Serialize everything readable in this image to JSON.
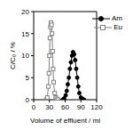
{
  "chart_data": {
    "type": "line",
    "x_label": "Volume of effluent / ml",
    "y_label": "C/C₀ / %",
    "xlim": [
      0,
      120
    ],
    "xticks": [
      0,
      30,
      60,
      90,
      120
    ],
    "ylim": [
      0,
      20
    ],
    "yticks": [
      0,
      5,
      10,
      15,
      20
    ],
    "grid": false,
    "legend": "top right",
    "series": [
      {
        "name": "Am",
        "color": "#000000",
        "marker": "circle",
        "x": [
          55,
          58,
          61,
          63,
          65,
          67,
          69,
          71,
          73,
          75,
          77,
          79,
          81,
          83,
          85,
          87,
          90,
          93,
          96
        ],
        "values": [
          0,
          0.3,
          1,
          2,
          3.5,
          5,
          7,
          8.5,
          10,
          10.8,
          10.3,
          9,
          7,
          5,
          3,
          1.5,
          0.5,
          0.2,
          0
        ]
      },
      {
        "name": "Eu",
        "color": "#808080",
        "marker": "square",
        "x": [
          24,
          26,
          28,
          29,
          30,
          31,
          32,
          33,
          34,
          35,
          36,
          37,
          38,
          40,
          42,
          44,
          46
        ],
        "values": [
          0,
          0.5,
          3,
          6,
          10,
          14,
          16.5,
          17.5,
          17,
          15,
          11,
          7,
          4,
          1.5,
          0.5,
          0.2,
          0
        ]
      }
    ]
  }
}
